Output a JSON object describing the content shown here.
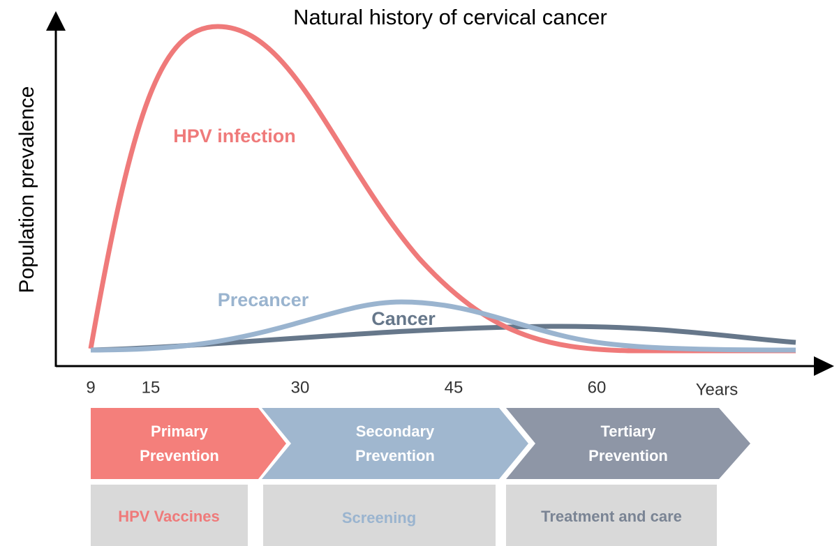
{
  "title": "Natural history of cervical cancer",
  "y_axis_label": "Population prevalence",
  "x_axis_label": "Years",
  "x_ticks": [
    "9",
    "15",
    "30",
    "45",
    "60"
  ],
  "curves": [
    {
      "label": "HPV infection"
    },
    {
      "label": "Precancer"
    },
    {
      "label": "Cancer"
    }
  ],
  "stages": [
    {
      "lines": [
        "Primary",
        "Prevention"
      ],
      "action": "HPV Vaccines"
    },
    {
      "lines": [
        "Secondary",
        "Prevention"
      ],
      "action": "Screening"
    },
    {
      "lines": [
        "Tertiary",
        "Prevention"
      ],
      "action": "Treatment and care"
    }
  ]
}
